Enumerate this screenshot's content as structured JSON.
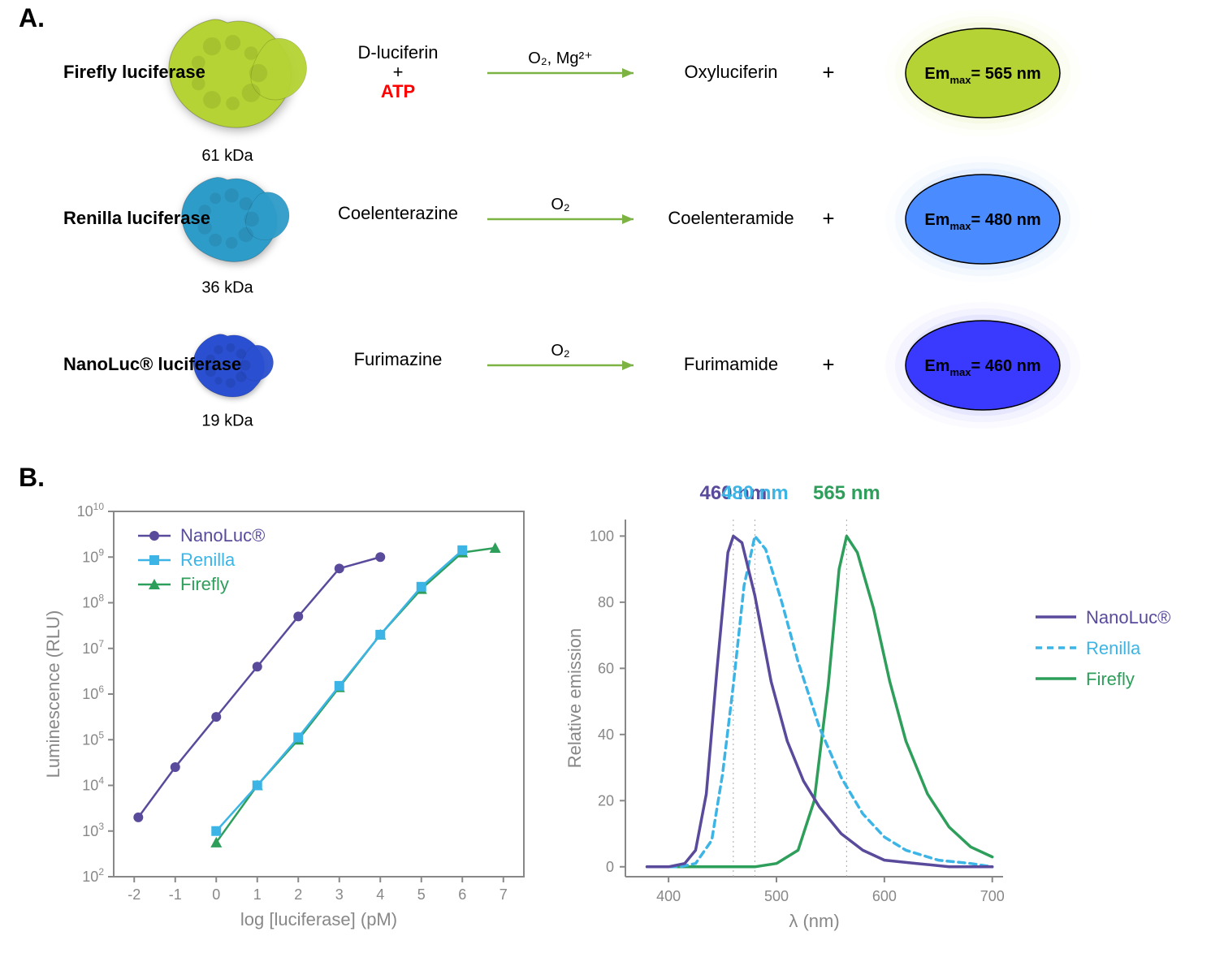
{
  "panels": {
    "A": "A.",
    "B": "B."
  },
  "rows": [
    {
      "name": "Firefly luciferase",
      "size_kda": "61 kDa",
      "protein_color": "#b5d334",
      "protein_scale": 1.0,
      "substrate_top": "D-luciferin",
      "substrate_bottom": "ATP",
      "substrate_bottom_color": "#ff0000",
      "plus": true,
      "cofactor": "O₂, Mg²⁺",
      "product": "Oxyluciferin",
      "em_label": "Emₘₐₓ= 565 nm",
      "em_color": "#b5d334",
      "glow_color": "rgba(181,211,52,0.35)"
    },
    {
      "name": "Renilla luciferase",
      "size_kda": "36 kDa",
      "protein_color": "#2e9cc9",
      "protein_scale": 0.78,
      "substrate_top": "Coelenterazine",
      "substrate_bottom": "",
      "plus": false,
      "cofactor": "O₂",
      "product": "Coelenteramide",
      "em_label": "Emₘₐₓ= 480 nm",
      "em_color": "#4a8cff",
      "glow_color": "rgba(74,140,255,0.35)"
    },
    {
      "name": "NanoLuc® luciferase",
      "size_kda": "19 kDa",
      "protein_color": "#2a4fd0",
      "protein_scale": 0.58,
      "substrate_top": "Furimazine",
      "substrate_bottom": "",
      "plus": false,
      "cofactor": "O₂",
      "product": "Furimamide",
      "em_label": "Emₘₐₓ= 460 nm",
      "em_color": "#3a3aff",
      "glow_color": "rgba(58,58,255,0.35)"
    }
  ],
  "arrow_color": "#7cb342",
  "chartB_left": {
    "xlabel": "log [luciferase] (pM)",
    "ylabel": "Luminescence (RLU)",
    "x_ticks": [
      -2,
      -1,
      0,
      1,
      2,
      3,
      4,
      5,
      6,
      7
    ],
    "y_exp_ticks": [
      2,
      3,
      4,
      5,
      6,
      7,
      8,
      9,
      10
    ],
    "xlim": [
      -2.5,
      7.5
    ],
    "ylim_exp": [
      2,
      10
    ],
    "legend": [
      {
        "label": "NanoLuc®",
        "marker": "circle",
        "dash": "none",
        "color": "#5a4a9c"
      },
      {
        "label": "Renilla",
        "marker": "square",
        "dash": "none",
        "color": "#3cb5e6"
      },
      {
        "label": "Firefly",
        "marker": "triangle",
        "dash": "none",
        "color": "#2e9e5b"
      }
    ],
    "series": {
      "nanoluc": {
        "color": "#5a4a9c",
        "marker": "circle",
        "pts": [
          [
            -1.9,
            3.3
          ],
          [
            -1,
            4.4
          ],
          [
            0,
            5.5
          ],
          [
            1,
            6.6
          ],
          [
            2,
            7.7
          ],
          [
            3,
            8.75
          ],
          [
            4,
            9.0
          ]
        ]
      },
      "renilla": {
        "color": "#3cb5e6",
        "marker": "square",
        "pts": [
          [
            0,
            3.0
          ],
          [
            1,
            4.0
          ],
          [
            2,
            5.05
          ],
          [
            3,
            6.18
          ],
          [
            4,
            7.3
          ],
          [
            5,
            8.35
          ],
          [
            6,
            9.15
          ]
        ]
      },
      "firefly": {
        "color": "#2e9e5b",
        "marker": "triangle",
        "pts": [
          [
            0,
            2.75
          ],
          [
            1,
            4.0
          ],
          [
            2,
            5.0
          ],
          [
            3,
            6.15
          ],
          [
            4,
            7.3
          ],
          [
            5,
            8.3
          ],
          [
            6,
            9.1
          ],
          [
            6.8,
            9.2
          ]
        ]
      }
    }
  },
  "chartB_right": {
    "xlabel": "λ (nm)",
    "ylabel": "Relative emission",
    "x_ticks": [
      400,
      500,
      600,
      700
    ],
    "y_ticks": [
      0,
      20,
      40,
      60,
      80,
      100
    ],
    "xlim": [
      360,
      710
    ],
    "ylim": [
      -3,
      105
    ],
    "peak_labels": [
      {
        "text": "460 nm",
        "x": 460,
        "color": "#5a4a9c"
      },
      {
        "text": "480 nm",
        "x": 480,
        "color": "#3cb5e6"
      },
      {
        "text": "565 nm",
        "x": 565,
        "color": "#2e9e5b"
      }
    ],
    "legend": [
      {
        "label": "NanoLuc®",
        "dash": "none",
        "color": "#5a4a9c"
      },
      {
        "label": "Renilla",
        "dash": "8,6",
        "color": "#3cb5e6"
      },
      {
        "label": "Firefly",
        "dash": "none",
        "color": "#2e9e5b"
      }
    ],
    "curves": {
      "nanoluc": {
        "color": "#5a4a9c",
        "dash": "none",
        "pts": [
          [
            380,
            0
          ],
          [
            400,
            0
          ],
          [
            415,
            1
          ],
          [
            425,
            5
          ],
          [
            435,
            22
          ],
          [
            445,
            60
          ],
          [
            455,
            95
          ],
          [
            460,
            100
          ],
          [
            468,
            98
          ],
          [
            480,
            82
          ],
          [
            495,
            56
          ],
          [
            510,
            38
          ],
          [
            525,
            26
          ],
          [
            540,
            18
          ],
          [
            560,
            10
          ],
          [
            580,
            5
          ],
          [
            600,
            2
          ],
          [
            630,
            1
          ],
          [
            660,
            0
          ],
          [
            700,
            0
          ]
        ]
      },
      "renilla": {
        "color": "#3cb5e6",
        "dash": "8,6",
        "pts": [
          [
            380,
            0
          ],
          [
            410,
            0
          ],
          [
            425,
            1
          ],
          [
            440,
            8
          ],
          [
            450,
            28
          ],
          [
            460,
            55
          ],
          [
            470,
            85
          ],
          [
            480,
            100
          ],
          [
            490,
            96
          ],
          [
            505,
            80
          ],
          [
            520,
            62
          ],
          [
            540,
            42
          ],
          [
            560,
            27
          ],
          [
            580,
            16
          ],
          [
            600,
            9
          ],
          [
            620,
            5
          ],
          [
            650,
            2
          ],
          [
            680,
            1
          ],
          [
            700,
            0
          ]
        ]
      },
      "firefly": {
        "color": "#2e9e5b",
        "dash": "none",
        "pts": [
          [
            380,
            0
          ],
          [
            480,
            0
          ],
          [
            500,
            1
          ],
          [
            520,
            5
          ],
          [
            535,
            20
          ],
          [
            548,
            55
          ],
          [
            558,
            90
          ],
          [
            565,
            100
          ],
          [
            575,
            95
          ],
          [
            590,
            78
          ],
          [
            605,
            56
          ],
          [
            620,
            38
          ],
          [
            640,
            22
          ],
          [
            660,
            12
          ],
          [
            680,
            6
          ],
          [
            700,
            3
          ]
        ]
      }
    }
  },
  "axis_color": "#888888",
  "axis_text_color": "#888888",
  "font_tick": 18,
  "font_label": 22,
  "font_legend": 22,
  "font_peak": 24,
  "font_panel": 32
}
